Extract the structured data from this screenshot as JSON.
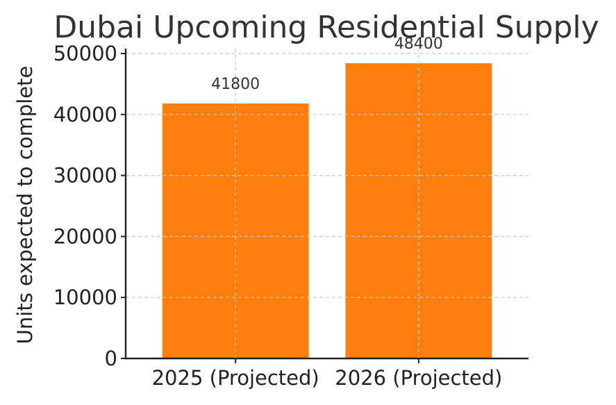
{
  "chart_data": {
    "type": "bar",
    "title": "Dubai Upcoming Residential Supply",
    "xlabel": "",
    "ylabel": "Units expected to complete",
    "categories": [
      "2025 (Projected)",
      "2026 (Projected)"
    ],
    "values": [
      41800,
      48400
    ],
    "data_labels": [
      "41800",
      "48400"
    ],
    "ylim": [
      0,
      50800
    ],
    "yticks": [
      0,
      10000,
      20000,
      30000,
      40000,
      50000
    ],
    "ytick_labels": [
      "0",
      "10000",
      "20000",
      "30000",
      "40000",
      "50000"
    ],
    "grid": true,
    "bar_color": "#ff7f0e",
    "legend": false
  }
}
